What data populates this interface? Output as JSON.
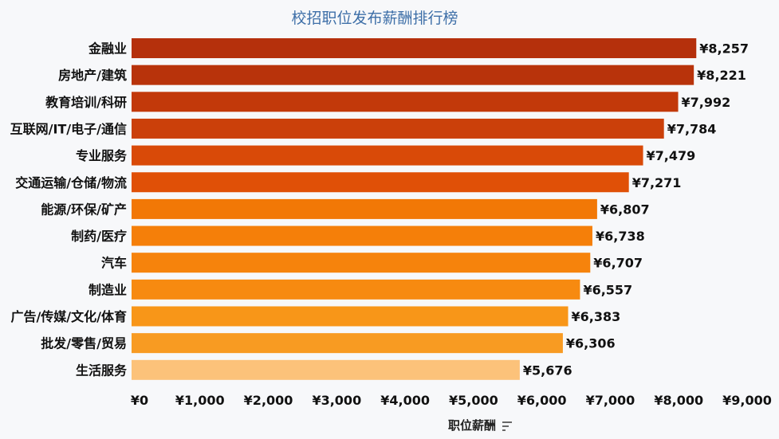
{
  "chart_data": {
    "type": "bar",
    "orientation": "horizontal",
    "title": "校招职位发布薪酬排行榜",
    "xlabel": "职位薪酬",
    "ylabel": "",
    "sort_indicator_icon": "sort-descending-icon",
    "categories": [
      "金融业",
      "房地产/建筑",
      "教育培训/科研",
      "互联网/IT/电子/通信",
      "专业服务",
      "交通运输/仓储/物流",
      "能源/环保/矿产",
      "制药/医疗",
      "汽车",
      "制造业",
      "广告/传媒/文化/体育",
      "批发/零售/贸易",
      "生活服务"
    ],
    "values": [
      8257,
      8221,
      7992,
      7784,
      7479,
      7271,
      6807,
      6738,
      6707,
      6557,
      6383,
      6306,
      5676
    ],
    "value_labels": [
      "¥8,257",
      "¥8,221",
      "¥7,992",
      "¥7,784",
      "¥7,479",
      "¥7,271",
      "¥6,807",
      "¥6,738",
      "¥6,707",
      "¥6,557",
      "¥6,383",
      "¥6,306",
      "¥5,676"
    ],
    "colors": [
      "#b5300c",
      "#b8330b",
      "#c2390a",
      "#cb400a",
      "#d94a08",
      "#e05007",
      "#f27806",
      "#f57f09",
      "#f6830c",
      "#f78a10",
      "#f89618",
      "#f89b22",
      "#fcc27a"
    ],
    "xlim": [
      0,
      9000
    ],
    "xticks": [
      0,
      1000,
      2000,
      3000,
      4000,
      5000,
      6000,
      7000,
      8000,
      9000
    ],
    "xtick_labels": [
      "¥0",
      "¥1,000",
      "¥2,000",
      "¥3,000",
      "¥4,000",
      "¥5,000",
      "¥6,000",
      "¥7,000",
      "¥8,000",
      "¥9,000"
    ],
    "grid": false,
    "legend": "none"
  }
}
